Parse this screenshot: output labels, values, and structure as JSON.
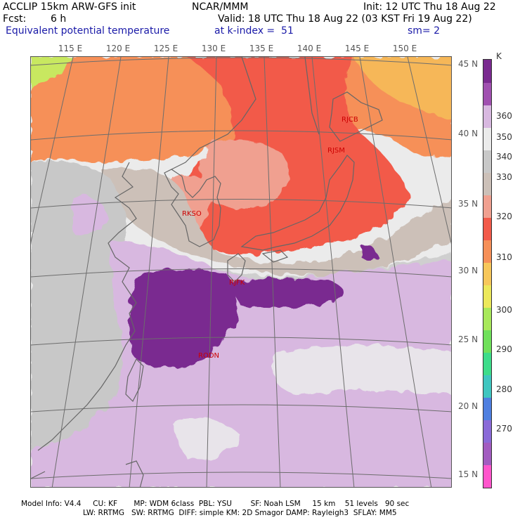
{
  "header": {
    "model": "ACCLIP 15km ARW-GFS init",
    "org": "NCAR/MMM",
    "init": "Init: 12 UTC Thu 18 Aug 22",
    "fcst_label": "Fcst:",
    "fcst_value": "6 h",
    "valid": "Valid: 18 UTC Thu 18 Aug 22 (03 KST Fri 19 Aug 22)",
    "field": "Equivalent potential temperature",
    "level": "at k-index =  51",
    "smooth": "sm= 2"
  },
  "map": {
    "lon_labels": [
      "115 E",
      "120 E",
      "125 E",
      "130 E",
      "135 E",
      "140 E",
      "145 E",
      "150 E"
    ],
    "lat_labels": [
      "45 N",
      "40 N",
      "35 N",
      "30 N",
      "25 N",
      "20 N",
      "15 N"
    ],
    "stations": [
      "RJCB",
      "RJSM",
      "RKSO",
      "RJFK",
      "RODN"
    ]
  },
  "colorbar": {
    "unit": "K",
    "labels": [
      "360",
      "350",
      "340",
      "330",
      "320",
      "310",
      "300",
      "290",
      "280",
      "270"
    ],
    "colors": [
      "#ff55cc",
      "#a25cc0",
      "#8a6ad8",
      "#4f7fe0",
      "#3fc6c0",
      "#3ddc8a",
      "#6fe05a",
      "#a8e85a",
      "#ece85a",
      "#f7c75a",
      "#f69058",
      "#f25a4a",
      "#f0a090",
      "#ccc0b8",
      "#c8c8c8",
      "#ebebeb",
      "#d8b8e0",
      "#a050b0",
      "#7a2a90"
    ]
  },
  "footer": {
    "line1": "Model Info: V4.4     CU: KF       MP: WDM 6class  PBL: YSU        SF: Noah LSM     15 km    51 levels   90 sec",
    "line2": "LW: RRTMG   SW: RRTMG  DIFF: simple KM: 2D Smagor DAMP: Rayleigh3  SFLAY: MM5"
  }
}
